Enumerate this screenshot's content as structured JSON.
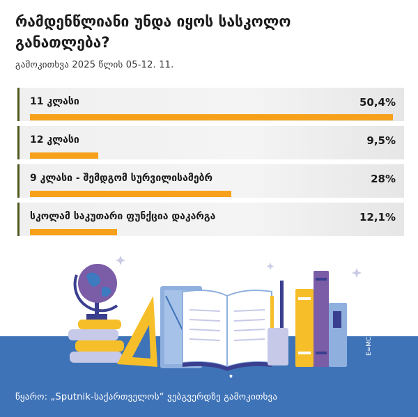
{
  "title": "რამდენწლიანი უნდა იყოს სასკოლო განათლება?",
  "subtitle": "გამოკითხვა 2025 წლის  05-12. 11.",
  "source": "წყარო:  „Sputnik-საქართველოს“  ვებგვერდზე გამოკითხვა",
  "emc2_label": "E=MC2",
  "colors": {
    "bar": "#f7a11a",
    "accent_border": "#4d5a1e",
    "footer": "#3f73b7"
  },
  "chart_data": {
    "type": "bar",
    "orientation": "horizontal",
    "unit": "%",
    "xlim": [
      0,
      50.4
    ],
    "categories": [
      "11 კლასი",
      "12 კლასი",
      "9 კლასი - შემდგომ სურვილისამებრ",
      "სკოლამ საკუთარი ფუნქცია დაკარგა"
    ],
    "values": [
      50.4,
      9.5,
      28,
      12.1
    ],
    "value_labels": [
      "50,4%",
      "9,5%",
      "28%",
      "12,1%"
    ]
  }
}
